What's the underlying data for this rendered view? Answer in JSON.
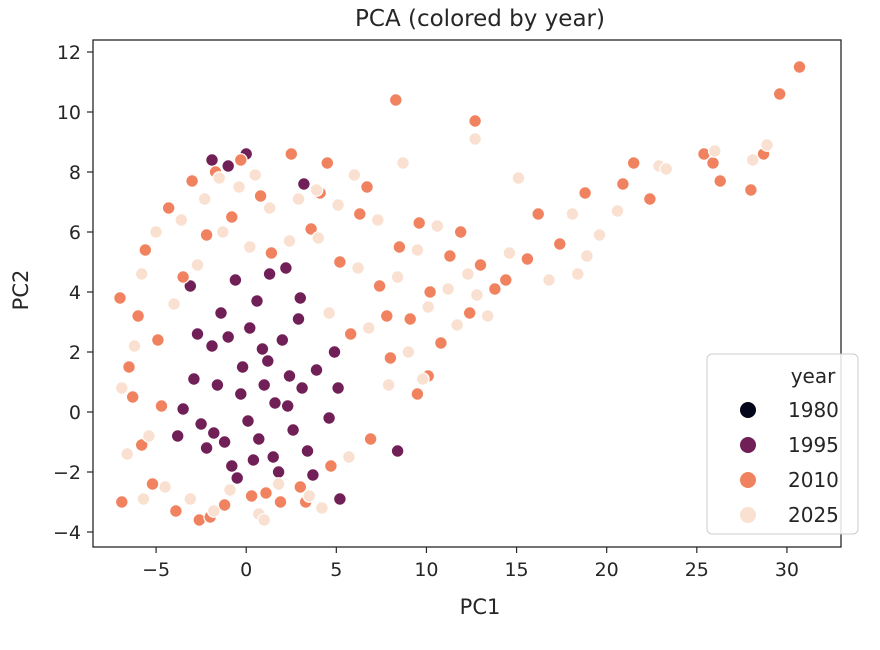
{
  "chart_data": {
    "type": "scatter",
    "title": "PCA (colored by year)",
    "xlabel": "PC1",
    "ylabel": "PC2",
    "xlim": [
      -8.5,
      33
    ],
    "ylim": [
      -4.5,
      12.4
    ],
    "xticks": [
      -5,
      0,
      5,
      10,
      15,
      20,
      25,
      30
    ],
    "yticks": [
      -4,
      -2,
      0,
      2,
      4,
      6,
      8,
      10,
      12
    ],
    "xtick_labels": [
      "−5",
      "0",
      "5",
      "10",
      "15",
      "20",
      "25",
      "30"
    ],
    "ytick_labels": [
      "−4",
      "−2",
      "0",
      "2",
      "4",
      "6",
      "8",
      "10",
      "12"
    ],
    "grid": false,
    "legend": {
      "title": "year",
      "placement": "lower-right"
    },
    "series": [
      {
        "name": "1980",
        "color": "#03051a",
        "points": []
      },
      {
        "name": "1995",
        "color": "#701f57",
        "points": [
          [
            -2.9,
            1.1
          ],
          [
            -2.5,
            -0.4
          ],
          [
            -1.9,
            2.2
          ],
          [
            -1.4,
            3.3
          ],
          [
            -0.8,
            -1.8
          ],
          [
            -0.3,
            0.6
          ],
          [
            0.2,
            2.8
          ],
          [
            0.7,
            -0.9
          ],
          [
            1.2,
            1.7
          ],
          [
            1.8,
            -2.0
          ],
          [
            2.3,
            0.2
          ],
          [
            2.9,
            3.1
          ],
          [
            3.4,
            -1.3
          ],
          [
            3.9,
            1.4
          ],
          [
            -2.2,
            -1.2
          ],
          [
            -1.6,
            0.9
          ],
          [
            -1.0,
            2.5
          ],
          [
            -0.5,
            -2.2
          ],
          [
            0.1,
            -0.3
          ],
          [
            0.6,
            3.7
          ],
          [
            1.0,
            0.9
          ],
          [
            1.5,
            -1.5
          ],
          [
            2.0,
            2.4
          ],
          [
            2.6,
            -0.6
          ],
          [
            3.1,
            0.8
          ],
          [
            -2.7,
            2.6
          ],
          [
            -1.8,
            -0.7
          ],
          [
            -0.2,
            1.5
          ],
          [
            0.9,
            2.1
          ],
          [
            1.6,
            0.3
          ],
          [
            2.4,
            1.2
          ],
          [
            -1.2,
            -1.0
          ],
          [
            0.4,
            -1.6
          ],
          [
            -3.5,
            0.1
          ],
          [
            4.6,
            -0.2
          ],
          [
            4.9,
            2.0
          ],
          [
            -0.6,
            4.4
          ],
          [
            1.3,
            4.6
          ],
          [
            -3.1,
            4.2
          ],
          [
            0.0,
            8.6
          ],
          [
            -1.9,
            8.4
          ],
          [
            3.0,
            3.8
          ],
          [
            -3.8,
            -0.8
          ],
          [
            5.1,
            0.8
          ],
          [
            5.2,
            -2.9
          ],
          [
            8.4,
            -1.3
          ],
          [
            3.2,
            7.6
          ],
          [
            -1.0,
            8.2
          ],
          [
            2.2,
            4.8
          ],
          [
            3.7,
            -2.1
          ]
        ]
      },
      {
        "name": "2010",
        "color": "#f1825f",
        "points": [
          [
            -6.9,
            -3.0
          ],
          [
            -6.5,
            1.5
          ],
          [
            -6.0,
            3.2
          ],
          [
            -5.6,
            5.4
          ],
          [
            -5.2,
            -2.4
          ],
          [
            -4.7,
            0.2
          ],
          [
            -4.3,
            6.8
          ],
          [
            -3.9,
            -3.3
          ],
          [
            -3.5,
            4.5
          ],
          [
            -3.0,
            7.7
          ],
          [
            -2.6,
            -3.6
          ],
          [
            -2.2,
            5.9
          ],
          [
            -1.7,
            8.0
          ],
          [
            -1.2,
            -3.1
          ],
          [
            -0.8,
            6.5
          ],
          [
            -0.3,
            8.4
          ],
          [
            0.3,
            -2.8
          ],
          [
            0.8,
            7.2
          ],
          [
            1.4,
            5.3
          ],
          [
            1.9,
            -3.0
          ],
          [
            2.5,
            8.6
          ],
          [
            3.0,
            -2.5
          ],
          [
            3.6,
            6.1
          ],
          [
            4.1,
            7.3
          ],
          [
            4.7,
            -1.8
          ],
          [
            5.2,
            5.0
          ],
          [
            5.8,
            2.6
          ],
          [
            6.3,
            6.6
          ],
          [
            6.9,
            -0.9
          ],
          [
            7.4,
            4.2
          ],
          [
            8.0,
            1.8
          ],
          [
            8.5,
            5.5
          ],
          [
            9.1,
            3.1
          ],
          [
            9.6,
            6.3
          ],
          [
            10.2,
            4.0
          ],
          [
            10.8,
            2.3
          ],
          [
            11.3,
            5.2
          ],
          [
            11.9,
            6.0
          ],
          [
            12.4,
            3.3
          ],
          [
            13.0,
            4.9
          ],
          [
            8.3,
            10.4
          ],
          [
            12.7,
            9.7
          ],
          [
            14.4,
            4.4
          ],
          [
            15.6,
            5.1
          ],
          [
            18.8,
            7.3
          ],
          [
            20.9,
            7.6
          ],
          [
            21.5,
            8.3
          ],
          [
            22.4,
            7.1
          ],
          [
            25.4,
            8.6
          ],
          [
            25.9,
            8.3
          ],
          [
            26.3,
            7.7
          ],
          [
            28.0,
            7.4
          ],
          [
            28.7,
            8.6
          ],
          [
            29.6,
            10.6
          ],
          [
            30.7,
            11.5
          ],
          [
            -7.0,
            3.8
          ],
          [
            -5.8,
            -1.1
          ],
          [
            4.5,
            8.3
          ],
          [
            6.7,
            7.5
          ],
          [
            -4.9,
            2.4
          ],
          [
            3.3,
            -3.0
          ],
          [
            -2.0,
            -3.5
          ],
          [
            1.1,
            -2.7
          ],
          [
            9.5,
            0.6
          ],
          [
            10.1,
            1.2
          ],
          [
            13.8,
            4.1
          ],
          [
            16.2,
            6.6
          ],
          [
            17.4,
            5.6
          ],
          [
            7.8,
            3.2
          ],
          [
            -6.3,
            0.5
          ]
        ]
      },
      {
        "name": "2025",
        "color": "#fae0d0",
        "points": [
          [
            -6.6,
            -1.4
          ],
          [
            -6.2,
            2.2
          ],
          [
            -5.8,
            4.6
          ],
          [
            -5.4,
            -0.8
          ],
          [
            -5.0,
            6.0
          ],
          [
            -4.5,
            -2.5
          ],
          [
            -4.0,
            3.6
          ],
          [
            -3.6,
            6.4
          ],
          [
            -3.1,
            -2.9
          ],
          [
            -2.7,
            4.9
          ],
          [
            -2.3,
            7.1
          ],
          [
            -1.8,
            -3.3
          ],
          [
            -1.3,
            6.0
          ],
          [
            -0.9,
            -2.6
          ],
          [
            -0.4,
            7.5
          ],
          [
            0.2,
            5.5
          ],
          [
            0.7,
            -3.4
          ],
          [
            1.3,
            6.8
          ],
          [
            1.8,
            -2.4
          ],
          [
            2.4,
            5.7
          ],
          [
            2.9,
            7.1
          ],
          [
            3.5,
            -2.8
          ],
          [
            4.0,
            5.8
          ],
          [
            4.6,
            3.3
          ],
          [
            5.1,
            6.9
          ],
          [
            5.7,
            -1.5
          ],
          [
            6.2,
            4.8
          ],
          [
            6.8,
            2.8
          ],
          [
            7.3,
            6.4
          ],
          [
            7.9,
            0.9
          ],
          [
            8.4,
            4.5
          ],
          [
            9.0,
            2.0
          ],
          [
            9.5,
            5.4
          ],
          [
            10.1,
            3.5
          ],
          [
            10.6,
            6.2
          ],
          [
            11.2,
            4.1
          ],
          [
            11.7,
            2.9
          ],
          [
            12.3,
            4.6
          ],
          [
            12.8,
            3.9
          ],
          [
            13.4,
            3.2
          ],
          [
            12.7,
            9.1
          ],
          [
            15.1,
            7.8
          ],
          [
            18.1,
            6.6
          ],
          [
            18.4,
            4.6
          ],
          [
            18.9,
            5.2
          ],
          [
            19.6,
            5.9
          ],
          [
            20.6,
            6.7
          ],
          [
            22.9,
            8.2
          ],
          [
            23.3,
            8.1
          ],
          [
            26.0,
            8.7
          ],
          [
            28.1,
            8.4
          ],
          [
            28.9,
            8.9
          ],
          [
            -1.5,
            7.8
          ],
          [
            0.5,
            7.9
          ],
          [
            3.9,
            7.4
          ],
          [
            6.0,
            7.9
          ],
          [
            8.7,
            8.3
          ],
          [
            -6.9,
            0.8
          ],
          [
            -5.7,
            -2.9
          ],
          [
            1.0,
            -3.6
          ],
          [
            4.2,
            -3.2
          ],
          [
            9.8,
            1.1
          ],
          [
            14.6,
            5.3
          ],
          [
            16.8,
            4.4
          ]
        ]
      }
    ]
  }
}
